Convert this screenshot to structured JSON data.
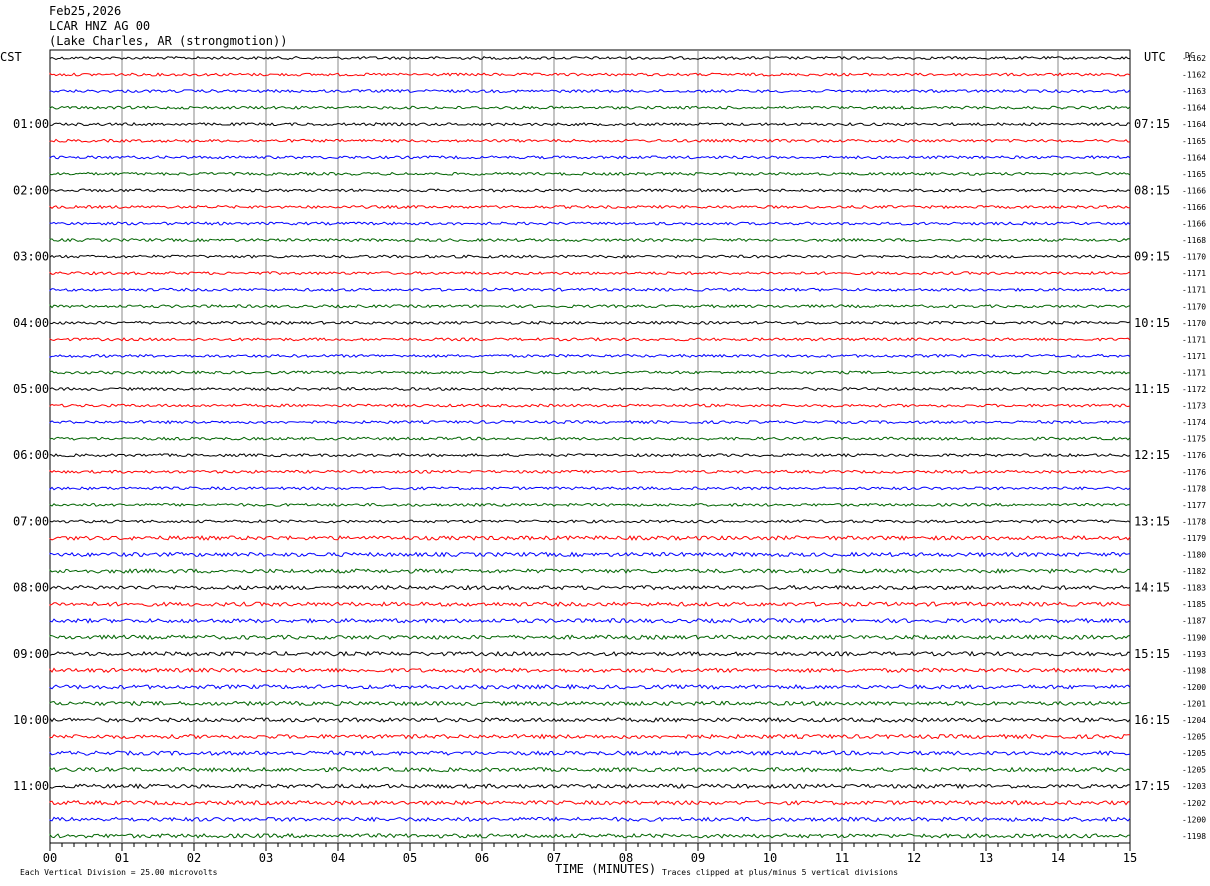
{
  "header": {
    "date": "Feb25,2026",
    "station": "LCAR HNZ AG 00",
    "location": "(Lake Charles, AR (strongmotion))"
  },
  "axes": {
    "left_zone": "CST",
    "right_zone": "UTC",
    "dc_label": "DC",
    "xlabel": "TIME (MINUTES)",
    "scale_note": "Each Vertical Division =   25.00 microvolts",
    "clip_note": "Traces clipped at plus/minus 5 vertical divisions"
  },
  "colors": {
    "trace_cycle": [
      "#000000",
      "#ff0000",
      "#0000ff",
      "#006400"
    ],
    "grid": "#888888"
  },
  "chart_data": {
    "type": "line",
    "title": "",
    "x_ticks": [
      "00",
      "01",
      "02",
      "03",
      "04",
      "05",
      "06",
      "07",
      "08",
      "09",
      "10",
      "11",
      "12",
      "13",
      "14",
      "15"
    ],
    "xlim": [
      0,
      15
    ],
    "left_hour_labels": [
      "01:00",
      "02:00",
      "03:00",
      "04:00",
      "05:00",
      "06:00",
      "07:00",
      "08:00",
      "09:00",
      "10:00",
      "11:00"
    ],
    "right_hour_labels": [
      "07:15",
      "08:15",
      "09:15",
      "10:15",
      "11:15",
      "12:15",
      "13:15",
      "14:15",
      "15:15",
      "16:15",
      "17:15"
    ],
    "dc_offsets": [
      -1162,
      -1162,
      -1163,
      -1164,
      -1164,
      -1165,
      -1164,
      -1165,
      -1166,
      -1166,
      -1166,
      -1168,
      -1170,
      -1171,
      -1171,
      -1170,
      -1170,
      -1171,
      -1171,
      -1171,
      -1172,
      -1173,
      -1174,
      -1175,
      -1176,
      -1176,
      -1178,
      -1177,
      -1178,
      -1179,
      -1180,
      -1182,
      -1183,
      -1185,
      -1187,
      -1190,
      -1193,
      -1198,
      -1200,
      -1201,
      -1204,
      -1205,
      -1205,
      -1205,
      -1203,
      -1202,
      -1200,
      -1198
    ],
    "trace_count": 48
  }
}
